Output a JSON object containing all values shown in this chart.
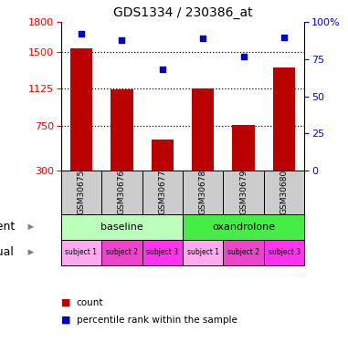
{
  "title": "GDS1334 / 230386_at",
  "categories": [
    "GSM30675",
    "GSM30676",
    "GSM30677",
    "GSM30678",
    "GSM30679",
    "GSM30680"
  ],
  "bar_values": [
    1540,
    1120,
    610,
    1130,
    760,
    1340
  ],
  "scatter_values": [
    92,
    88,
    68,
    89,
    77,
    90
  ],
  "bar_bottom": 300,
  "ylim_left": [
    300,
    1800
  ],
  "ylim_right": [
    0,
    100
  ],
  "yticks_left": [
    300,
    750,
    1125,
    1500,
    1800
  ],
  "yticks_right": [
    0,
    25,
    50,
    75,
    100
  ],
  "bar_color": "#bb0000",
  "scatter_color": "#0000cc",
  "agent_labels": [
    "baseline",
    "oxandrolone"
  ],
  "agent_colors_baseline": "#bbffbb",
  "agent_colors_oxandrolone": "#44ee44",
  "individual_labels": [
    "subject 1",
    "subject 2",
    "subject 3",
    "subject 1",
    "subject 2",
    "subject 3"
  ],
  "individual_colors": [
    "#ffaaee",
    "#ee44cc",
    "#ff33ee",
    "#ffaaee",
    "#ee44cc",
    "#ff33ee"
  ],
  "gsm_bg_color": "#cccccc",
  "legend_count_color": "#bb0000",
  "legend_pct_color": "#0000cc",
  "grid_yticks": [
    750,
    1125,
    1500
  ]
}
